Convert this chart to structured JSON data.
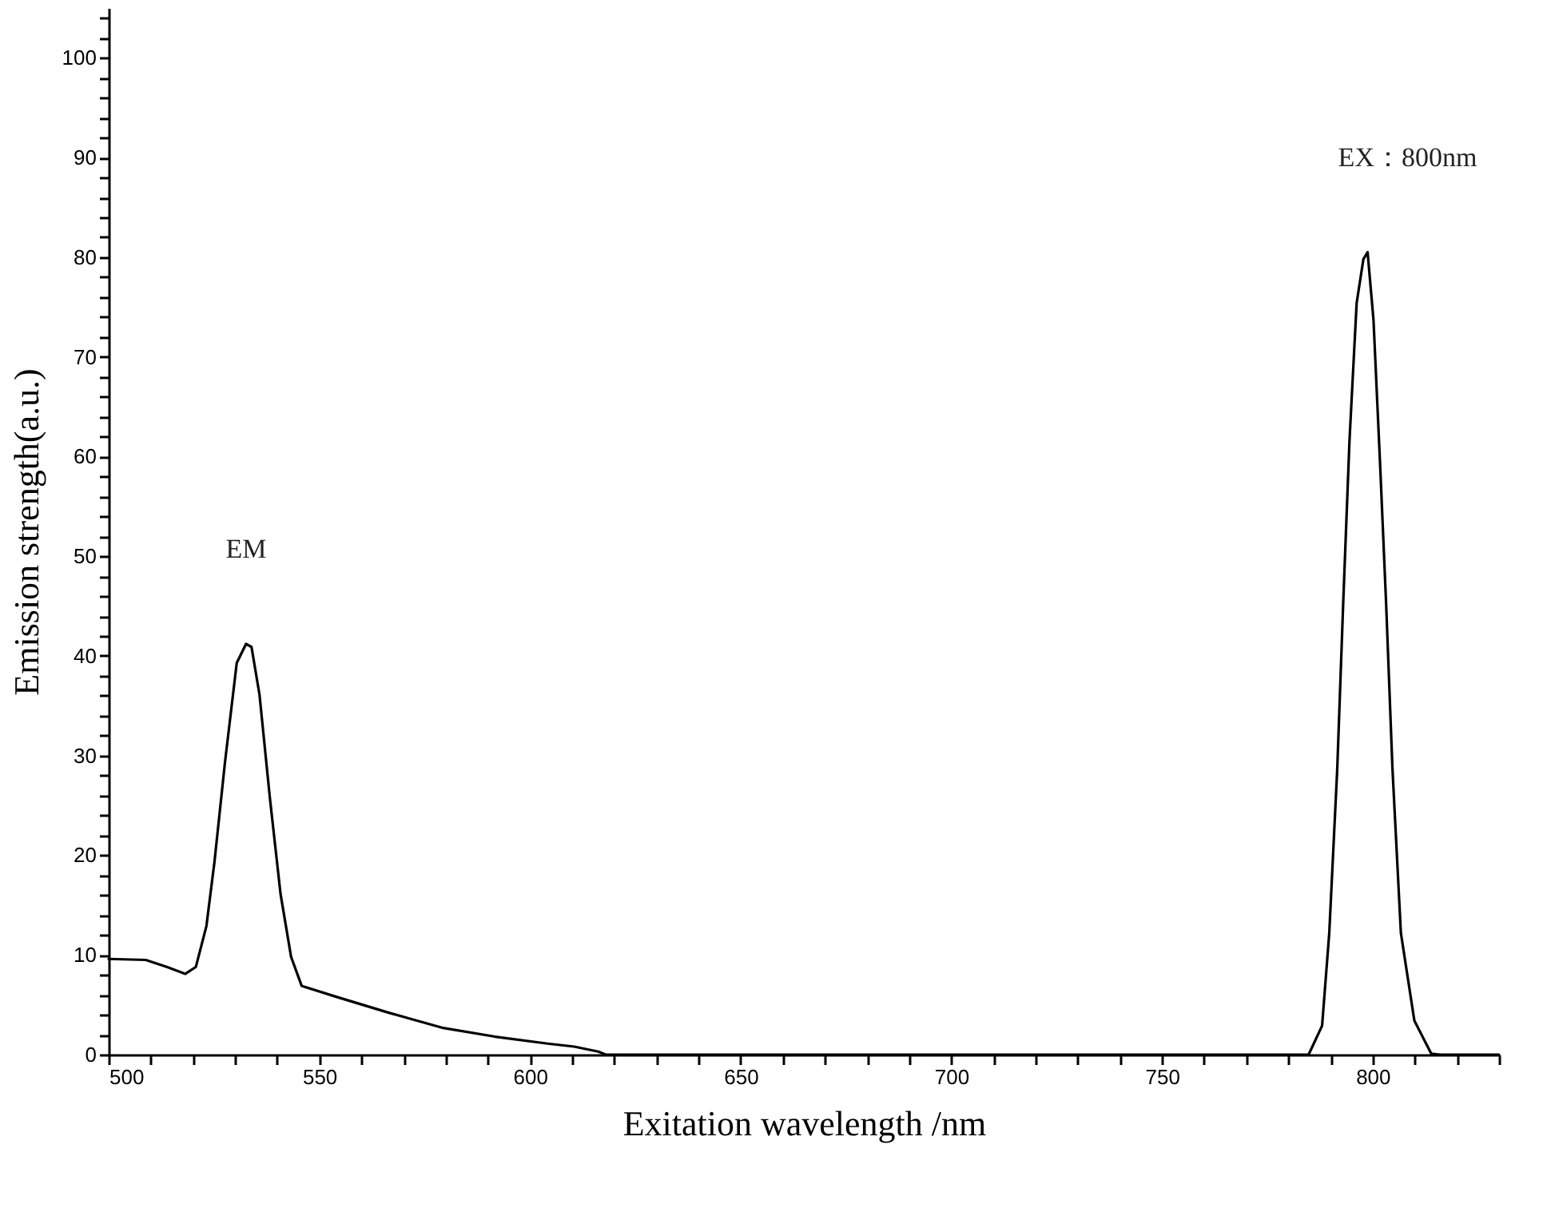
{
  "chart_data": {
    "type": "line",
    "xlabel": "Exitation wavelength /nm",
    "ylabel": "Emission strength(a.u.)",
    "xlim": [
      500,
      830
    ],
    "ylim": [
      0,
      105
    ],
    "xticks": [
      500,
      {
        "value": 510,
        "label": null
      },
      {
        "value": 520,
        "label": null
      },
      {
        "value": 530,
        "label": null
      },
      {
        "value": 540,
        "label": null
      },
      550,
      {
        "value": 560,
        "label": null
      },
      {
        "value": 570,
        "label": null
      },
      {
        "value": 580,
        "label": null
      },
      {
        "value": 590,
        "label": null
      },
      600,
      {
        "value": 610,
        "label": null
      },
      {
        "value": 620,
        "label": null
      },
      {
        "value": 630,
        "label": null
      },
      {
        "value": 640,
        "label": null
      },
      650,
      {
        "value": 660,
        "label": null
      },
      {
        "value": 670,
        "label": null
      },
      {
        "value": 680,
        "label": null
      },
      {
        "value": 690,
        "label": null
      },
      700,
      {
        "value": 710,
        "label": null
      },
      {
        "value": 720,
        "label": null
      },
      {
        "value": 730,
        "label": null
      },
      {
        "value": 740,
        "label": null
      },
      750,
      {
        "value": 760,
        "label": null
      },
      {
        "value": 770,
        "label": null
      },
      {
        "value": 780,
        "label": null
      },
      {
        "value": 790,
        "label": null
      },
      800,
      {
        "value": 810,
        "label": null
      },
      {
        "value": 820,
        "label": null
      },
      {
        "value": 830,
        "label": null
      }
    ],
    "yticks": [
      0,
      {
        "value": 2,
        "label": null
      },
      {
        "value": 4,
        "label": null
      },
      {
        "value": 6,
        "label": null
      },
      {
        "value": 8,
        "label": null
      },
      10,
      {
        "value": 12,
        "label": null
      },
      {
        "value": 14,
        "label": null
      },
      {
        "value": 16,
        "label": null
      },
      {
        "value": 18,
        "label": null
      },
      20,
      {
        "value": 22,
        "label": null
      },
      {
        "value": 24,
        "label": null
      },
      {
        "value": 26,
        "label": null
      },
      {
        "value": 28,
        "label": null
      },
      30,
      {
        "value": 32,
        "label": null
      },
      {
        "value": 34,
        "label": null
      },
      {
        "value": 36,
        "label": null
      },
      {
        "value": 38,
        "label": null
      },
      40,
      {
        "value": 42,
        "label": null
      },
      {
        "value": 44,
        "label": null
      },
      {
        "value": 46,
        "label": null
      },
      {
        "value": 48,
        "label": null
      },
      50,
      {
        "value": 52,
        "label": null
      },
      {
        "value": 54,
        "label": null
      },
      {
        "value": 56,
        "label": null
      },
      {
        "value": 58,
        "label": null
      },
      60,
      {
        "value": 62,
        "label": null
      },
      {
        "value": 64,
        "label": null
      },
      {
        "value": 66,
        "label": null
      },
      {
        "value": 68,
        "label": null
      },
      70,
      {
        "value": 72,
        "label": null
      },
      {
        "value": 74,
        "label": null
      },
      {
        "value": 76,
        "label": null
      },
      {
        "value": 78,
        "label": null
      },
      80,
      {
        "value": 82,
        "label": null
      },
      {
        "value": 84,
        "label": null
      },
      {
        "value": 86,
        "label": null
      },
      {
        "value": 88,
        "label": null
      },
      90,
      {
        "value": 92,
        "label": null
      },
      {
        "value": 94,
        "label": null
      },
      {
        "value": 96,
        "label": null
      },
      {
        "value": 98,
        "label": null
      },
      100,
      {
        "value": 102,
        "label": null
      },
      {
        "value": 104,
        "label": null
      }
    ],
    "grid": false,
    "marker": "none",
    "line_style": "solid",
    "series": [
      {
        "color": "#000000",
        "x": [
          500,
          508.8,
          513.8,
          518.2,
          520.7,
          523.2,
          525.1,
          527.6,
          530.4,
          532.6,
          533.9,
          535.8,
          538.3,
          540.8,
          543.3,
          545.8,
          554,
          566.5,
          579.1,
          591.7,
          604.2,
          610.5,
          616.2,
          618,
          700,
          784.8,
          788,
          789.7,
          791.6,
          793,
          794.5,
          796.2,
          797.8,
          798.8,
          800.2,
          801.8,
          803.2,
          804.7,
          806.7,
          809.9,
          813.9,
          816,
          830
        ],
        "values": [
          9.6,
          9.5,
          8.8,
          8.1,
          8.8,
          12.9,
          19.3,
          29.3,
          39.3,
          41.2,
          40.9,
          36.1,
          25.6,
          16.1,
          9.8,
          6.9,
          5.8,
          4.2,
          2.7,
          1.8,
          1.1,
          0.8,
          0.3,
          0,
          0,
          0,
          2.9,
          12.2,
          28.7,
          45.2,
          61.6,
          75.4,
          79.8,
          80.5,
          73.7,
          58.9,
          45.2,
          28.7,
          12.2,
          3.4,
          0.1,
          0,
          0
        ]
      }
    ],
    "annotations": [
      "EM",
      "EX：800nm"
    ]
  }
}
